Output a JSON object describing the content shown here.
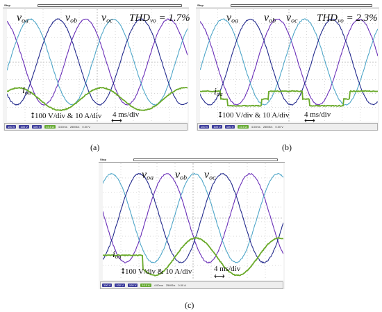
{
  "panels": [
    {
      "id": "a",
      "caption": "(a)",
      "status_label": "Stop",
      "labels": {
        "v1": "v",
        "v1s": "oa",
        "v2": "v",
        "v2s": "ob",
        "v3": "v",
        "v3s": "oc",
        "i": "i",
        "is": "oa"
      },
      "thd": {
        "prefix": "THD",
        "sub": "vo",
        "value": "= 1.7%"
      },
      "scale_note": "100 V/div & 10 A/div",
      "time_note": "4 ms/div",
      "status_bar": [
        "100 V",
        "100 V",
        "100 V",
        "10.0 A",
        "4.00ms",
        "25MS/s",
        "0.00 V"
      ],
      "current_shape": "sine"
    },
    {
      "id": "b",
      "caption": "(b)",
      "status_label": "Stop",
      "labels": {
        "v1": "v",
        "v1s": "oa",
        "v2": "v",
        "v2s": "ob",
        "v3": "v",
        "v3s": "oc",
        "i": "i",
        "is": "oa"
      },
      "thd": {
        "prefix": "THD",
        "sub": "vo",
        "value": "= 2.3%"
      },
      "scale_note": "100 V/div & 10 A/div",
      "time_note": "4 ms/div",
      "status_bar": [
        "100 V",
        "100 V",
        "100 V",
        "10.0 A",
        "4.00ms",
        "25MS/s",
        "0.00 V"
      ],
      "current_shape": "square"
    },
    {
      "id": "c",
      "caption": "(c)",
      "status_label": "Stop",
      "labels": {
        "v1": "v",
        "v1s": "oa",
        "v2": "v",
        "v2s": "ob",
        "v3": "v",
        "v3s": "oc",
        "i": "i",
        "is": "oa"
      },
      "thd": null,
      "scale_note": "100 V/div & 10 A/div",
      "time_note": "4 ms/div",
      "status_bar": [
        "100 V",
        "100 V",
        "100 V",
        "10.0 A",
        "4.00ms",
        "25MS/s",
        "0.00 A"
      ],
      "current_shape": "step"
    }
  ],
  "colors": {
    "phase_a": "#6a2fb8",
    "phase_b": "#4fa6c8",
    "phase_c": "#232a8c",
    "current": "#6aaa2a",
    "grid": "#9a9a9a"
  }
}
